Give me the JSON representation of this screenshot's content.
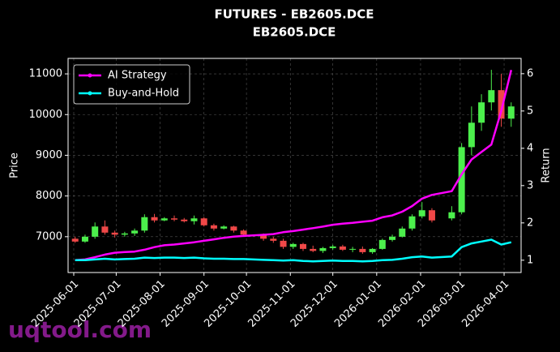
{
  "chart_data": {
    "type": "candlestick",
    "title": "FUTURES - EB2605.DCE",
    "subtitle": "EB2605.DCE",
    "ylabel": "Price",
    "y2label": "Return",
    "watermark": "uqtool.com",
    "legend": "upper left",
    "grid": true,
    "up_color": "#4cef4c",
    "down_color": "#f04848",
    "xlim": [
      "2025-05-28",
      "2026-04-13"
    ],
    "xticks": [
      "2025-06-01",
      "2025-07-01",
      "2025-08-01",
      "2025-09-01",
      "2025-10-01",
      "2025-11-01",
      "2025-12-01",
      "2026-01-01",
      "2026-02-01",
      "2026-03-01",
      "2026-04-01"
    ],
    "ylim": [
      6120,
      11380
    ],
    "yticks": [
      7000,
      8000,
      9000,
      10000,
      11000
    ],
    "y2lim": [
      0.67,
      6.41
    ],
    "y2ticks": [
      1,
      2,
      3,
      4,
      5,
      6
    ],
    "x": [
      "2025-06-02",
      "2025-06-09",
      "2025-06-16",
      "2025-06-23",
      "2025-06-30",
      "2025-07-07",
      "2025-07-14",
      "2025-07-21",
      "2025-07-28",
      "2025-08-04",
      "2025-08-11",
      "2025-08-18",
      "2025-08-25",
      "2025-09-01",
      "2025-09-08",
      "2025-09-15",
      "2025-09-22",
      "2025-09-29",
      "2025-10-13",
      "2025-10-20",
      "2025-10-27",
      "2025-11-03",
      "2025-11-10",
      "2025-11-17",
      "2025-11-24",
      "2025-12-01",
      "2025-12-08",
      "2025-12-15",
      "2025-12-22",
      "2025-12-29",
      "2026-01-05",
      "2026-01-12",
      "2026-01-19",
      "2026-01-26",
      "2026-02-02",
      "2026-02-09",
      "2026-02-23",
      "2026-03-02",
      "2026-03-09",
      "2026-03-16",
      "2026-03-23",
      "2026-03-30",
      "2026-04-06"
    ],
    "open": [
      6950,
      6880,
      7000,
      7250,
      7100,
      7050,
      7080,
      7150,
      7480,
      7400,
      7450,
      7420,
      7380,
      7450,
      7280,
      7200,
      7250,
      7150,
      7050,
      6950,
      6900,
      6750,
      6820,
      6700,
      6650,
      6720,
      6760,
      6680,
      6700,
      6620,
      6700,
      6920,
      7000,
      7200,
      7500,
      7650,
      7450,
      7600,
      9200,
      9800,
      10300,
      10600,
      9900
    ],
    "high": [
      7000,
      7050,
      7350,
      7400,
      7150,
      7120,
      7200,
      7550,
      7560,
      7480,
      7520,
      7460,
      7520,
      7480,
      7320,
      7280,
      7270,
      7180,
      7080,
      7000,
      6950,
      6850,
      6850,
      6780,
      6750,
      6800,
      6800,
      6750,
      6760,
      6720,
      6950,
      7050,
      7250,
      7550,
      7850,
      7700,
      7750,
      9300,
      10200,
      10500,
      11100,
      11000,
      10300
    ],
    "low": [
      6850,
      6850,
      6950,
      7050,
      6980,
      7000,
      7020,
      7100,
      7350,
      7380,
      7380,
      7350,
      7300,
      7250,
      7150,
      7180,
      7100,
      7000,
      6900,
      6850,
      6700,
      6700,
      6650,
      6620,
      6600,
      6680,
      6650,
      6620,
      6580,
      6580,
      6680,
      6880,
      6980,
      7150,
      7450,
      7350,
      7400,
      7550,
      9000,
      9600,
      10100,
      9700,
      9700
    ],
    "close": [
      6880,
      7000,
      7250,
      7100,
      7050,
      7080,
      7150,
      7480,
      7400,
      7450,
      7420,
      7380,
      7450,
      7280,
      7200,
      7250,
      7150,
      7050,
      6950,
      6900,
      6750,
      6820,
      6700,
      6650,
      6720,
      6760,
      6680,
      6700,
      6620,
      6700,
      6920,
      7000,
      7200,
      7500,
      7650,
      7400,
      7600,
      9200,
      9800,
      10300,
      10600,
      9900,
      10200
    ],
    "series": [
      {
        "name": "AI Strategy",
        "color": "#ff00ff",
        "axis": "y2",
        "values": [
          1.0,
          1.02,
          1.08,
          1.15,
          1.2,
          1.22,
          1.23,
          1.28,
          1.35,
          1.4,
          1.42,
          1.45,
          1.48,
          1.52,
          1.56,
          1.6,
          1.63,
          1.65,
          1.68,
          1.7,
          1.75,
          1.78,
          1.82,
          1.86,
          1.9,
          1.95,
          1.98,
          2.0,
          2.03,
          2.06,
          2.15,
          2.2,
          2.3,
          2.45,
          2.65,
          2.75,
          2.85,
          3.3,
          3.7,
          3.9,
          4.1,
          5.0,
          6.1
        ]
      },
      {
        "name": "Buy-and-Hold",
        "color": "#00ffff",
        "axis": "y2",
        "values": [
          1.0,
          1.0,
          1.02,
          1.04,
          1.02,
          1.03,
          1.04,
          1.07,
          1.06,
          1.07,
          1.07,
          1.06,
          1.07,
          1.05,
          1.04,
          1.04,
          1.03,
          1.03,
          1.01,
          1.0,
          0.99,
          1.0,
          0.98,
          0.97,
          0.98,
          0.99,
          0.98,
          0.98,
          0.97,
          0.98,
          1.0,
          1.01,
          1.04,
          1.08,
          1.1,
          1.07,
          1.1,
          1.35,
          1.45,
          1.5,
          1.55,
          1.42,
          1.48
        ]
      }
    ]
  }
}
